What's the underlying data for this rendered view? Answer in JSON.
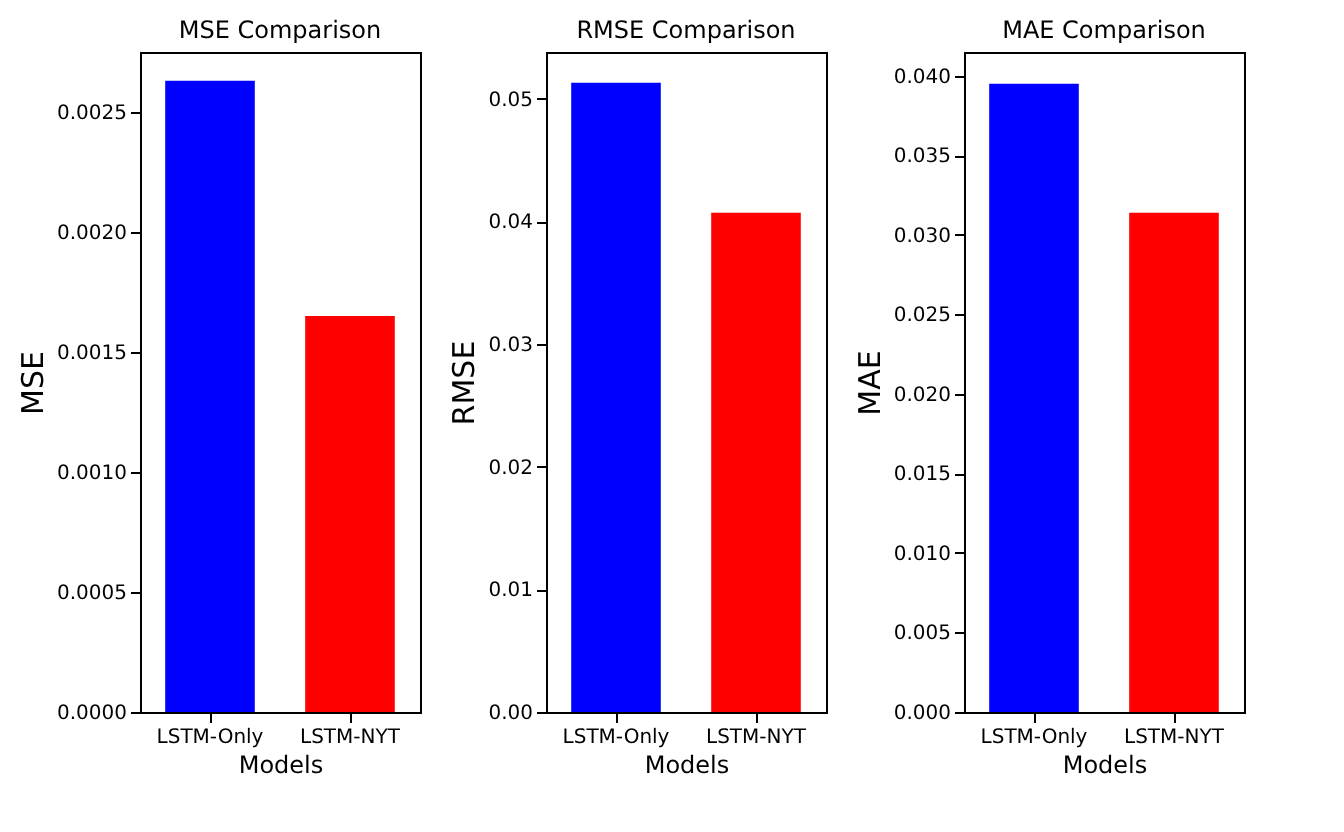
{
  "chart_data": [
    {
      "type": "bar",
      "title": "MSE Comparison",
      "xlabel": "Models",
      "ylabel": "MSE",
      "categories": [
        "LSTM-Only",
        "LSTM-NYT"
      ],
      "values": [
        0.00263,
        0.00165
      ],
      "colors": [
        "#0000ff",
        "#ff0000"
      ],
      "ylim": [
        0,
        0.00275
      ],
      "yticks": [
        {
          "value": 0,
          "label": "0.0000"
        },
        0.0005,
        {
          "value": 0.001,
          "label": "0.0010"
        },
        0.0015,
        {
          "value": 0.002,
          "label": "0.0020"
        },
        0.0025
      ],
      "grid": false
    },
    {
      "type": "bar",
      "title": "RMSE Comparison",
      "xlabel": "Models",
      "ylabel": "RMSE",
      "categories": [
        "LSTM-Only",
        "LSTM-NYT"
      ],
      "values": [
        0.0513,
        0.0407
      ],
      "colors": [
        "#0000ff",
        "#ff0000"
      ],
      "ylim": [
        0,
        0.0538
      ],
      "yticks": [
        {
          "value": 0,
          "label": "0.00"
        },
        0.01,
        0.02,
        0.03,
        0.04,
        0.05
      ],
      "grid": false
    },
    {
      "type": "bar",
      "title": "MAE Comparison",
      "xlabel": "Models",
      "ylabel": "MAE",
      "categories": [
        "LSTM-Only",
        "LSTM-NYT"
      ],
      "values": [
        0.0395,
        0.0314
      ],
      "colors": [
        "#0000ff",
        "#ff0000"
      ],
      "ylim": [
        0,
        0.0415
      ],
      "yticks": [
        {
          "value": 0,
          "label": "0.000"
        },
        0.005,
        {
          "value": 0.01,
          "label": "0.010"
        },
        0.015,
        {
          "value": 0.02,
          "label": "0.020"
        },
        0.025,
        {
          "value": 0.03,
          "label": "0.030"
        },
        0.035,
        {
          "value": 0.04,
          "label": "0.040"
        }
      ],
      "grid": false
    }
  ]
}
